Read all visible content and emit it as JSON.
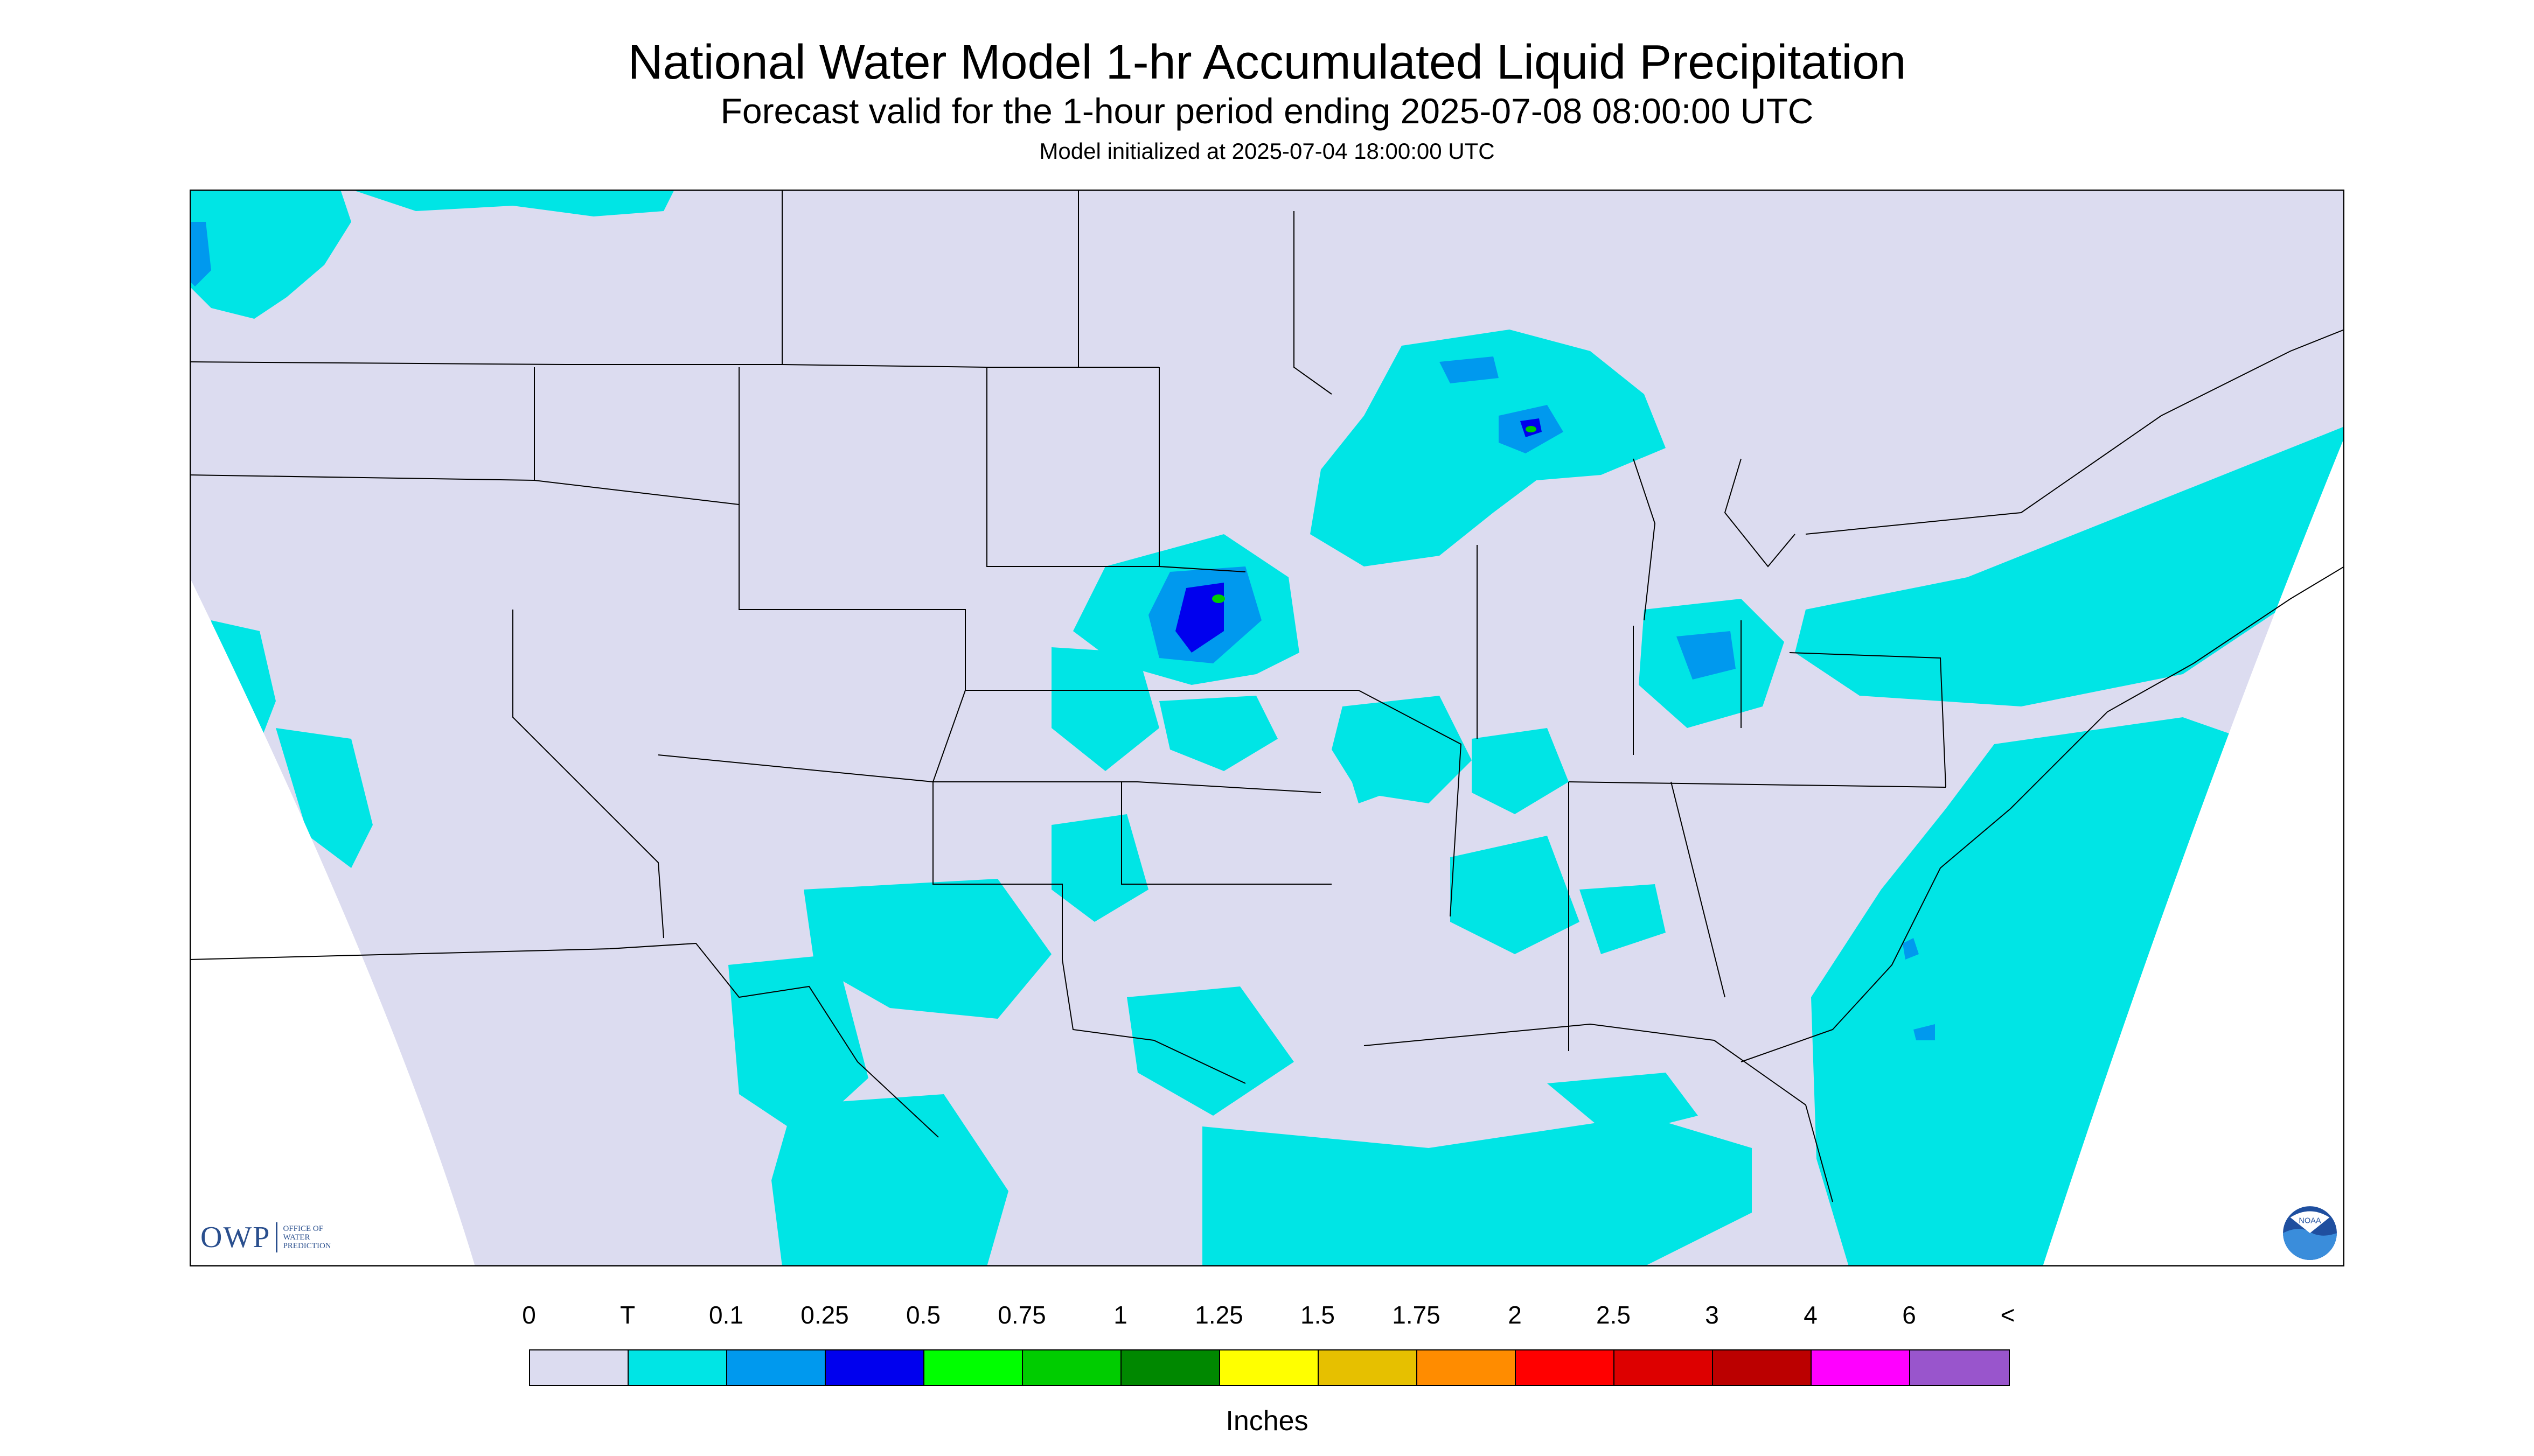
{
  "header": {
    "title": "National Water Model 1-hr Accumulated Liquid Precipitation",
    "subtitle": "Forecast valid for the 1-hour period ending 2025-07-08 08:00:00 UTC",
    "initialized": "Model initialized at 2025-07-04 18:00:00 UTC"
  },
  "logos": {
    "owp_mark": "OWP",
    "owp_text": "OFFICE OF WATER PREDICTION",
    "noaa_text": "NOAA"
  },
  "legend": {
    "labels": [
      "0",
      "T",
      "0.1",
      "0.25",
      "0.5",
      "0.75",
      "1",
      "1.25",
      "1.5",
      "1.75",
      "2",
      "2.5",
      "3",
      "4",
      "6",
      "<"
    ],
    "colors": [
      "#dcdcf0",
      "#00e5e5",
      "#0099ee",
      "#0000ee",
      "#00ff00",
      "#00cc00",
      "#008800",
      "#ffff00",
      "#e6c000",
      "#ff8c00",
      "#ff0000",
      "#dd0000",
      "#bb0000",
      "#ff00ff",
      "#9955cc"
    ],
    "units": "Inches"
  },
  "map": {
    "region": "CONUS",
    "no_data_color": "#dcdcf0",
    "precip_colors": {
      "trace": "#00e5e5",
      "light": "#0099ee",
      "moderate": "#0000ee",
      "heavy": "#00cc00",
      "extreme": "#ffff00"
    }
  }
}
